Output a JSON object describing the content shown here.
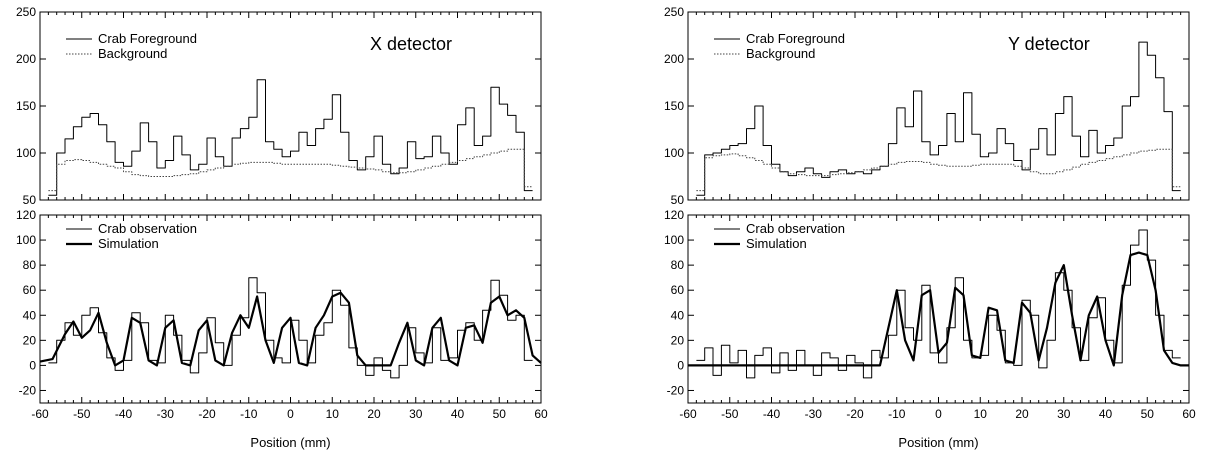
{
  "chart_data": [
    {
      "type": "line",
      "panel": "X detector, top",
      "annotation": "X detector",
      "xlim": [
        -60,
        60
      ],
      "ylim": [
        50,
        250
      ],
      "y_ticks": [
        50,
        100,
        150,
        200,
        250
      ],
      "series": [
        {
          "name": "Crab Foreground",
          "style": "solid",
          "x": [
            -57,
            -55,
            -53,
            -51,
            -49,
            -47,
            -45,
            -43,
            -41,
            -39,
            -37,
            -35,
            -33,
            -31,
            -29,
            -27,
            -25,
            -23,
            -21,
            -19,
            -17,
            -15,
            -13,
            -11,
            -9,
            -7,
            -5,
            -3,
            -1,
            1,
            3,
            5,
            7,
            9,
            11,
            13,
            15,
            17,
            19,
            21,
            23,
            25,
            27,
            29,
            31,
            33,
            35,
            37,
            39,
            41,
            43,
            45,
            47,
            49,
            51,
            53,
            55,
            57
          ],
          "values": [
            55,
            100,
            115,
            128,
            138,
            142,
            130,
            112,
            90,
            86,
            102,
            132,
            112,
            84,
            92,
            118,
            98,
            82,
            88,
            116,
            96,
            86,
            116,
            126,
            138,
            178,
            112,
            104,
            96,
            102,
            122,
            108,
            126,
            136,
            162,
            122,
            92,
            82,
            96,
            118,
            88,
            78,
            84,
            112,
            94,
            96,
            118,
            100,
            88,
            130,
            148,
            108,
            118,
            170,
            152,
            140,
            122,
            60
          ]
        },
        {
          "name": "Background",
          "style": "dotted",
          "x": [
            -57,
            -55,
            -53,
            -51,
            -49,
            -47,
            -45,
            -43,
            -41,
            -39,
            -37,
            -35,
            -33,
            -31,
            -29,
            -27,
            -25,
            -23,
            -21,
            -19,
            -17,
            -15,
            -13,
            -11,
            -9,
            -7,
            -5,
            -3,
            -1,
            1,
            3,
            5,
            7,
            9,
            11,
            13,
            15,
            17,
            19,
            21,
            23,
            25,
            27,
            29,
            31,
            33,
            35,
            37,
            39,
            41,
            43,
            45,
            47,
            49,
            51,
            53,
            55,
            57
          ],
          "values": [
            60,
            88,
            92,
            93,
            92,
            90,
            88,
            86,
            84,
            80,
            77,
            76,
            75,
            75,
            75,
            76,
            77,
            78,
            80,
            82,
            84,
            86,
            88,
            89,
            90,
            90,
            90,
            89,
            88,
            88,
            88,
            88,
            88,
            88,
            87,
            86,
            85,
            84,
            83,
            82,
            80,
            79,
            79,
            80,
            82,
            84,
            86,
            88,
            90,
            92,
            94,
            96,
            98,
            100,
            102,
            104,
            104,
            64
          ]
        }
      ]
    },
    {
      "type": "line",
      "panel": "X detector, bottom",
      "xlim": [
        -60,
        60
      ],
      "ylim": [
        -30,
        120
      ],
      "y_ticks": [
        -20,
        0,
        20,
        40,
        60,
        80,
        100,
        120
      ],
      "x_ticks": [
        -60,
        -50,
        -40,
        -30,
        -20,
        -10,
        0,
        10,
        20,
        30,
        40,
        50,
        60
      ],
      "xlabel": "Position (mm)",
      "series": [
        {
          "name": "Crab observation",
          "style": "thin",
          "x": [
            -57,
            -55,
            -53,
            -51,
            -49,
            -47,
            -45,
            -43,
            -41,
            -39,
            -37,
            -35,
            -33,
            -31,
            -29,
            -27,
            -25,
            -23,
            -21,
            -19,
            -17,
            -15,
            -13,
            -11,
            -9,
            -7,
            -5,
            -3,
            -1,
            1,
            3,
            5,
            7,
            9,
            11,
            13,
            15,
            17,
            19,
            21,
            23,
            25,
            27,
            29,
            31,
            33,
            35,
            37,
            39,
            41,
            43,
            45,
            47,
            49,
            51,
            53,
            55,
            57
          ],
          "values": [
            2,
            20,
            34,
            24,
            40,
            46,
            26,
            6,
            -4,
            4,
            42,
            34,
            4,
            2,
            40,
            24,
            4,
            -6,
            10,
            38,
            18,
            0,
            24,
            38,
            70,
            58,
            20,
            6,
            2,
            36,
            20,
            2,
            24,
            34,
            60,
            48,
            14,
            0,
            -8,
            6,
            -4,
            -10,
            0,
            30,
            10,
            2,
            30,
            4,
            6,
            28,
            34,
            20,
            44,
            68,
            56,
            36,
            40,
            4
          ]
        },
        {
          "name": "Simulation",
          "style": "thick",
          "x": [
            -60,
            -57,
            -54,
            -52,
            -50,
            -48,
            -46,
            -44,
            -42,
            -40,
            -38,
            -36,
            -34,
            -32,
            -30,
            -28,
            -26,
            -24,
            -22,
            -20,
            -18,
            -16,
            -14,
            -12,
            -10,
            -8,
            -6,
            -4,
            -2,
            0,
            2,
            4,
            6,
            8,
            10,
            12,
            14,
            16,
            18,
            20,
            22,
            24,
            26,
            28,
            30,
            32,
            34,
            36,
            38,
            40,
            42,
            44,
            46,
            48,
            50,
            52,
            54,
            56,
            58,
            60
          ],
          "values": [
            3,
            5,
            25,
            35,
            22,
            28,
            42,
            18,
            0,
            4,
            38,
            34,
            4,
            0,
            30,
            36,
            2,
            0,
            28,
            36,
            4,
            0,
            26,
            40,
            30,
            55,
            20,
            2,
            30,
            38,
            2,
            0,
            30,
            40,
            55,
            58,
            50,
            8,
            0,
            0,
            0,
            0,
            18,
            34,
            4,
            0,
            30,
            38,
            4,
            0,
            30,
            32,
            18,
            50,
            55,
            40,
            44,
            38,
            8,
            2
          ]
        }
      ]
    },
    {
      "type": "line",
      "panel": "Y detector, top",
      "annotation": "Y detector",
      "xlim": [
        -60,
        60
      ],
      "ylim": [
        50,
        250
      ],
      "y_ticks": [
        50,
        100,
        150,
        200,
        250
      ],
      "series": [
        {
          "name": "Crab Foreground",
          "style": "solid",
          "x": [
            -57,
            -55,
            -53,
            -51,
            -49,
            -47,
            -45,
            -43,
            -41,
            -39,
            -37,
            -35,
            -33,
            -31,
            -29,
            -27,
            -25,
            -23,
            -21,
            -19,
            -17,
            -15,
            -13,
            -11,
            -9,
            -7,
            -5,
            -3,
            -1,
            1,
            3,
            5,
            7,
            9,
            11,
            13,
            15,
            17,
            19,
            21,
            23,
            25,
            27,
            29,
            31,
            33,
            35,
            37,
            39,
            41,
            43,
            45,
            47,
            49,
            51,
            53,
            55,
            57
          ],
          "values": [
            55,
            98,
            100,
            104,
            108,
            110,
            126,
            150,
            108,
            88,
            80,
            76,
            80,
            84,
            78,
            74,
            80,
            82,
            78,
            80,
            78,
            82,
            86,
            110,
            148,
            128,
            166,
            112,
            98,
            108,
            142,
            112,
            164,
            120,
            96,
            100,
            126,
            110,
            92,
            82,
            104,
            126,
            98,
            142,
            160,
            118,
            96,
            124,
            100,
            108,
            116,
            150,
            160,
            218,
            204,
            180,
            144,
            60
          ]
        },
        {
          "name": "Background",
          "style": "dotted",
          "x": [
            -57,
            -55,
            -53,
            -51,
            -49,
            -47,
            -45,
            -43,
            -41,
            -39,
            -37,
            -35,
            -33,
            -31,
            -29,
            -27,
            -25,
            -23,
            -21,
            -19,
            -17,
            -15,
            -13,
            -11,
            -9,
            -7,
            -5,
            -3,
            -1,
            1,
            3,
            5,
            7,
            9,
            11,
            13,
            15,
            17,
            19,
            21,
            23,
            25,
            27,
            29,
            31,
            33,
            35,
            37,
            39,
            41,
            43,
            45,
            47,
            49,
            51,
            53,
            55,
            57
          ],
          "values": [
            60,
            95,
            97,
            98,
            99,
            97,
            95,
            92,
            88,
            84,
            80,
            78,
            77,
            76,
            76,
            76,
            77,
            78,
            79,
            80,
            82,
            84,
            86,
            88,
            90,
            91,
            91,
            90,
            88,
            87,
            86,
            86,
            86,
            87,
            88,
            88,
            88,
            88,
            86,
            84,
            80,
            78,
            78,
            80,
            82,
            85,
            88,
            90,
            92,
            94,
            96,
            98,
            100,
            102,
            103,
            104,
            104,
            64
          ]
        }
      ]
    },
    {
      "type": "line",
      "panel": "Y detector, bottom",
      "xlim": [
        -60,
        60
      ],
      "ylim": [
        -30,
        120
      ],
      "y_ticks": [
        -20,
        0,
        20,
        40,
        60,
        80,
        100,
        120
      ],
      "x_ticks": [
        -60,
        -50,
        -40,
        -30,
        -20,
        -10,
        0,
        10,
        20,
        30,
        40,
        50,
        60
      ],
      "xlabel": "Position (mm)",
      "series": [
        {
          "name": "Crab observation",
          "style": "thin",
          "x": [
            -57,
            -55,
            -53,
            -51,
            -49,
            -47,
            -45,
            -43,
            -41,
            -39,
            -37,
            -35,
            -33,
            -31,
            -29,
            -27,
            -25,
            -23,
            -21,
            -19,
            -17,
            -15,
            -13,
            -11,
            -9,
            -7,
            -5,
            -3,
            -1,
            1,
            3,
            5,
            7,
            9,
            11,
            13,
            15,
            17,
            19,
            21,
            23,
            25,
            27,
            29,
            31,
            33,
            35,
            37,
            39,
            41,
            43,
            45,
            47,
            49,
            51,
            53,
            55,
            57
          ],
          "values": [
            4,
            14,
            -8,
            16,
            2,
            12,
            -10,
            8,
            14,
            -6,
            10,
            -4,
            12,
            0,
            -8,
            10,
            6,
            -4,
            8,
            2,
            -10,
            12,
            6,
            24,
            60,
            30,
            20,
            64,
            10,
            2,
            30,
            70,
            20,
            6,
            8,
            40,
            28,
            2,
            0,
            52,
            40,
            -2,
            20,
            74,
            60,
            30,
            4,
            38,
            54,
            20,
            2,
            64,
            96,
            108,
            84,
            40,
            12,
            6
          ]
        },
        {
          "name": "Simulation",
          "style": "thick",
          "x": [
            -60,
            -57,
            -54,
            -52,
            -50,
            -48,
            -46,
            -44,
            -42,
            -40,
            -38,
            -36,
            -34,
            -32,
            -30,
            -28,
            -26,
            -24,
            -22,
            -20,
            -18,
            -16,
            -14,
            -12,
            -10,
            -8,
            -6,
            -4,
            -2,
            0,
            2,
            4,
            6,
            8,
            10,
            12,
            14,
            16,
            18,
            20,
            22,
            24,
            26,
            28,
            30,
            32,
            34,
            36,
            38,
            40,
            42,
            44,
            46,
            48,
            50,
            52,
            54,
            56,
            58,
            60
          ],
          "values": [
            0,
            0,
            0,
            0,
            0,
            0,
            0,
            0,
            0,
            0,
            0,
            0,
            0,
            0,
            0,
            0,
            0,
            0,
            0,
            0,
            0,
            0,
            0,
            30,
            60,
            20,
            4,
            56,
            60,
            10,
            18,
            62,
            56,
            8,
            6,
            46,
            44,
            4,
            2,
            50,
            42,
            4,
            30,
            66,
            80,
            40,
            4,
            40,
            55,
            20,
            0,
            56,
            88,
            90,
            88,
            60,
            12,
            2,
            0,
            0
          ]
        }
      ]
    }
  ]
}
